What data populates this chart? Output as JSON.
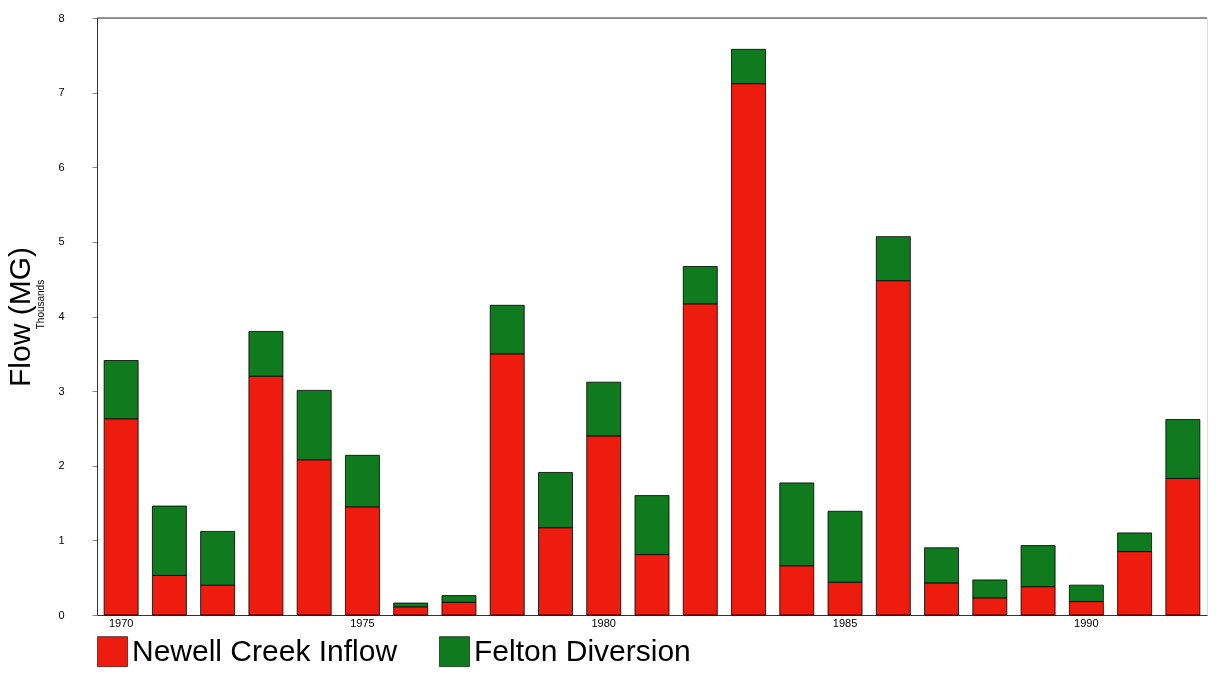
{
  "chart_data": {
    "type": "bar",
    "ylabel": "Flow (MG)",
    "annotations": [
      "Thousands"
    ],
    "categories": [
      "1970",
      null,
      null,
      null,
      null,
      "1975",
      null,
      null,
      null,
      null,
      "1980",
      null,
      null,
      null,
      null,
      "1985",
      null,
      null,
      null,
      null,
      "1990",
      null,
      null
    ],
    "stacked": true,
    "series": [
      {
        "name": "Newell Creek Inflow",
        "color": "#ee1c0e",
        "values": [
          2.63,
          0.53,
          0.4,
          3.2,
          2.08,
          1.45,
          0.11,
          0.17,
          3.5,
          1.17,
          2.4,
          0.81,
          4.17,
          7.12,
          0.66,
          0.44,
          4.48,
          0.43,
          0.23,
          0.38,
          0.18,
          0.85,
          1.83
        ]
      },
      {
        "name": "Felton Diversion",
        "color": "#0f7a1e",
        "values": [
          0.78,
          0.93,
          0.72,
          0.6,
          0.93,
          0.69,
          0.05,
          0.09,
          0.65,
          0.74,
          0.72,
          0.79,
          0.5,
          0.46,
          1.11,
          0.95,
          0.59,
          0.47,
          0.24,
          0.55,
          0.22,
          0.25,
          0.79
        ]
      }
    ],
    "ylim": [
      0,
      8
    ],
    "yticks": [
      0,
      1,
      2,
      3,
      4,
      5,
      6,
      7,
      8
    ],
    "grid": false,
    "legend": "bottom"
  }
}
